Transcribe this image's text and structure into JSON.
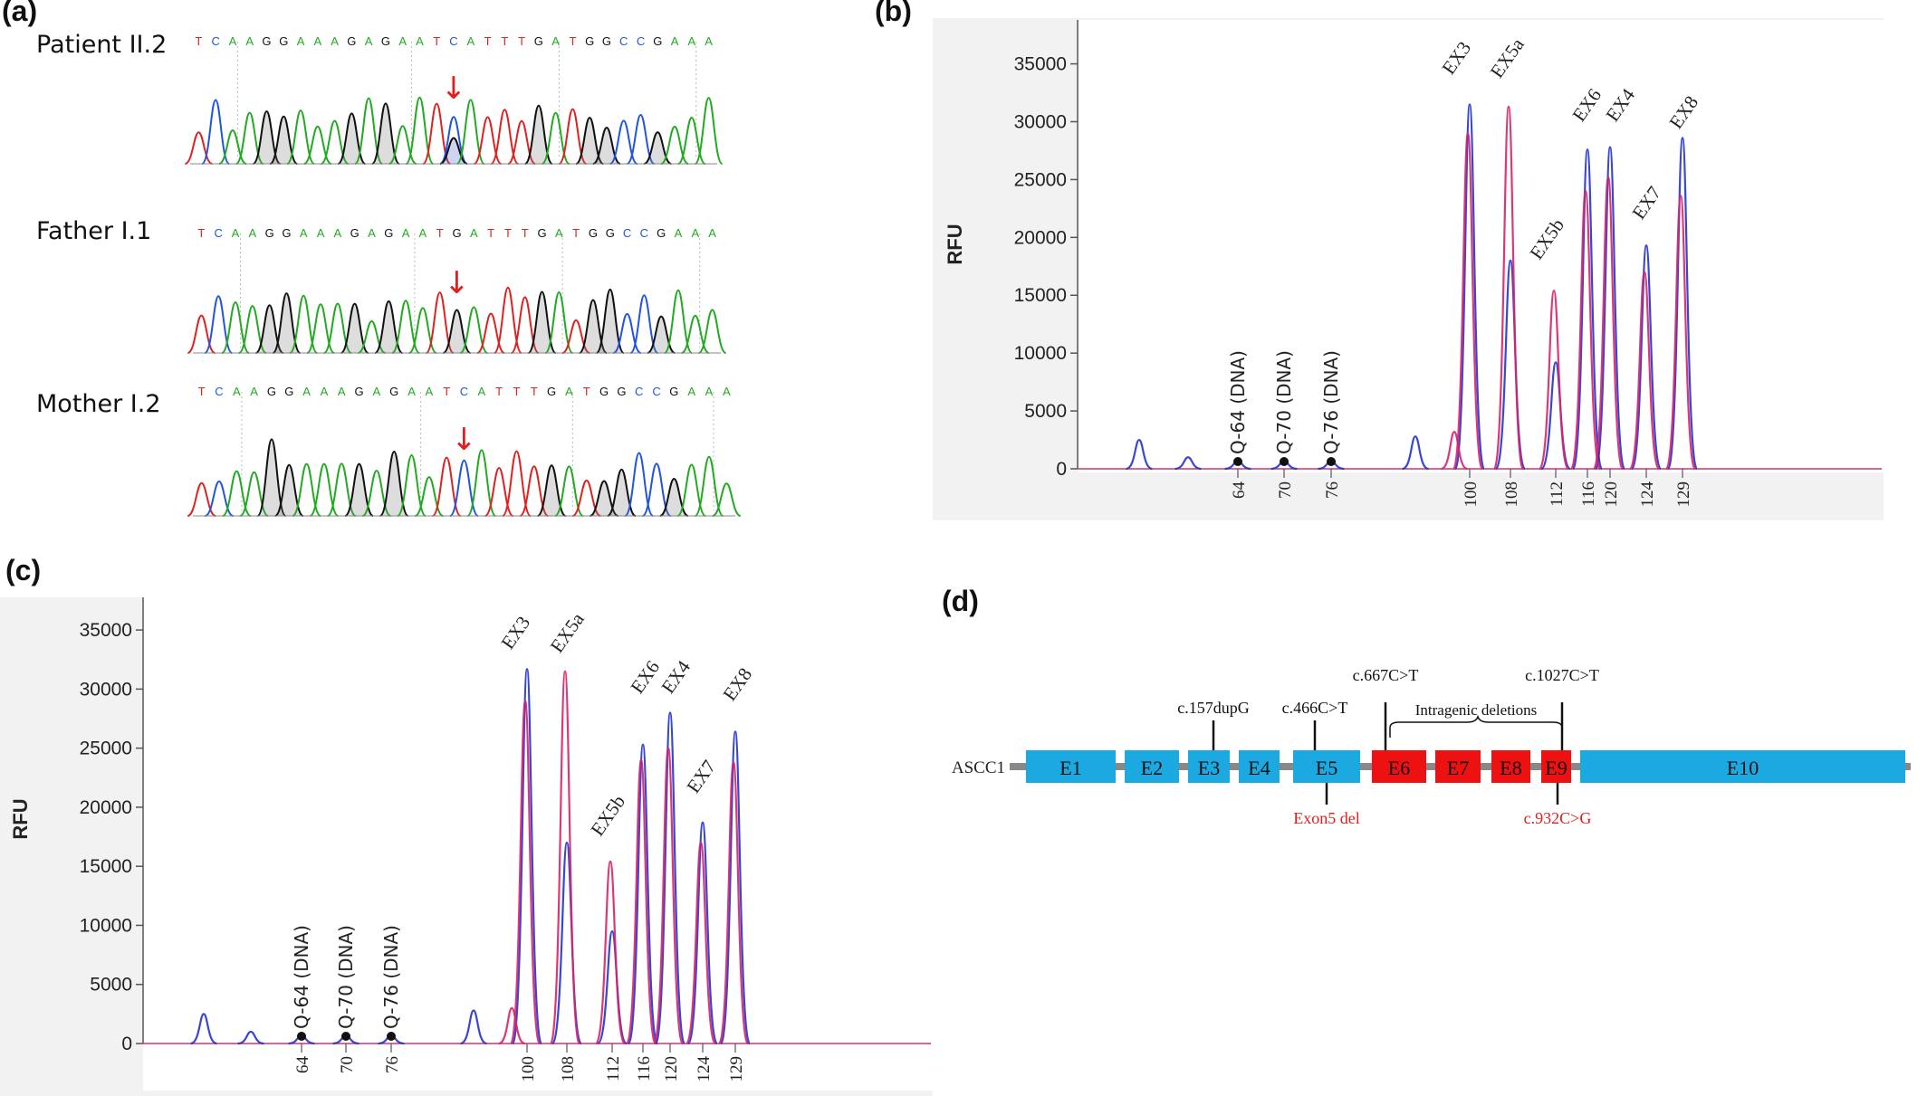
{
  "labels": {
    "a": "(a)",
    "b": "(b)",
    "c": "(c)",
    "d": "(d)"
  },
  "panel_a": {
    "tracks": [
      {
        "person": "Patient II.2",
        "sequence": "TCAAGGAAAGAGAATCATTTGATGGCCGAAA",
        "arrow": "↓"
      },
      {
        "person": "Father I.1",
        "sequence": "TCAAGGAAAGAGAATGATTTGATGGCCGAAA",
        "arrow": "↓"
      },
      {
        "person": "Mother I.2",
        "sequence": "TCAAGGAAAGAGAATCATTTGATGGCCGAAA",
        "arrow": "↓"
      }
    ],
    "base_colors": {
      "A": "#22aa22",
      "C": "#2255dd",
      "G": "#111111",
      "T": "#dd2222"
    },
    "arrow_color": "#e02020"
  },
  "panel_b": {
    "chart_data": {
      "type": "line",
      "ylabel": "RFU",
      "yticks": [
        "0",
        "5000",
        "10000",
        "15000",
        "20000",
        "25000",
        "30000",
        "35000"
      ],
      "ylim": [
        0,
        37000
      ],
      "xtick_labels": [
        "64",
        "70",
        "76",
        "100",
        "108",
        "112",
        "116",
        "120",
        "124",
        "129"
      ],
      "control_labels": [
        "Q-64 (DNA)",
        "Q-70 (DNA)",
        "Q-76 (DNA)"
      ],
      "exon_labels": [
        "EX3",
        "EX5a",
        "EX5b",
        "EX6",
        "EX4",
        "EX7",
        "EX8"
      ],
      "series": [
        {
          "color": "#2233cc",
          "peaks": [
            {
              "size": 40,
              "height": 2500
            },
            {
              "size": 50,
              "height": 1000
            },
            {
              "size": 64,
              "height": 700
            },
            {
              "size": 70,
              "height": 700
            },
            {
              "size": 76,
              "height": 700
            },
            {
              "size": 92,
              "height": 2800
            },
            {
              "size": 100,
              "height": 31500
            },
            {
              "size": 108,
              "height": 18000
            },
            {
              "size": 112,
              "height": 9200
            },
            {
              "size": 116,
              "height": 27600
            },
            {
              "size": 120,
              "height": 27800
            },
            {
              "size": 124,
              "height": 19300
            },
            {
              "size": 129,
              "height": 28600
            }
          ]
        },
        {
          "color": "#d8226a",
          "peaks": [
            {
              "size": 98,
              "height": 3200
            },
            {
              "size": 100,
              "height": 29000
            },
            {
              "size": 108,
              "height": 31300
            },
            {
              "size": 112,
              "height": 15400
            },
            {
              "size": 116,
              "height": 24000
            },
            {
              "size": 120,
              "height": 25200
            },
            {
              "size": 124,
              "height": 17000
            },
            {
              "size": 129,
              "height": 23600
            }
          ]
        }
      ]
    }
  },
  "panel_c": {
    "chart_data": {
      "type": "line",
      "ylabel": "RFU",
      "yticks": [
        "0",
        "5000",
        "10000",
        "15000",
        "20000",
        "25000",
        "30000",
        "35000"
      ],
      "ylim": [
        0,
        37000
      ],
      "xtick_labels": [
        "64",
        "70",
        "76",
        "100",
        "108",
        "112",
        "116",
        "120",
        "124",
        "129"
      ],
      "control_labels": [
        "Q-64 (DNA)",
        "Q-70 (DNA)",
        "Q-76 (DNA)"
      ],
      "exon_labels": [
        "EX3",
        "EX5a",
        "EX5b",
        "EX6",
        "EX4",
        "EX7",
        "EX8"
      ],
      "series": [
        {
          "color": "#2233cc",
          "peaks": [
            {
              "size": 40,
              "height": 2500
            },
            {
              "size": 50,
              "height": 1000
            },
            {
              "size": 64,
              "height": 700
            },
            {
              "size": 70,
              "height": 700
            },
            {
              "size": 76,
              "height": 700
            },
            {
              "size": 92,
              "height": 2800
            },
            {
              "size": 100,
              "height": 31700
            },
            {
              "size": 108,
              "height": 17000
            },
            {
              "size": 112,
              "height": 9500
            },
            {
              "size": 116,
              "height": 25300
            },
            {
              "size": 120,
              "height": 28000
            },
            {
              "size": 124,
              "height": 18700
            },
            {
              "size": 129,
              "height": 26400
            }
          ]
        },
        {
          "color": "#d8226a",
          "peaks": [
            {
              "size": 98,
              "height": 3000
            },
            {
              "size": 100,
              "height": 29000
            },
            {
              "size": 108,
              "height": 31500
            },
            {
              "size": 112,
              "height": 15400
            },
            {
              "size": 116,
              "height": 24000
            },
            {
              "size": 120,
              "height": 25000
            },
            {
              "size": 124,
              "height": 17000
            },
            {
              "size": 129,
              "height": 23800
            }
          ]
        }
      ]
    }
  },
  "panel_d": {
    "gene": "ASCC1",
    "exons": [
      {
        "label": "E1",
        "color": "#1ca8e0"
      },
      {
        "label": "E2",
        "color": "#1ca8e0"
      },
      {
        "label": "E3",
        "color": "#1ca8e0"
      },
      {
        "label": "E4",
        "color": "#1ca8e0"
      },
      {
        "label": "E5",
        "color": "#1ca8e0"
      },
      {
        "label": "E6",
        "color": "#ee1111"
      },
      {
        "label": "E7",
        "color": "#ee1111"
      },
      {
        "label": "E8",
        "color": "#ee1111"
      },
      {
        "label": "E9",
        "color": "#ee1111"
      },
      {
        "label": "E10",
        "color": "#1ca8e0"
      }
    ],
    "variants_above": [
      "c.157dupG",
      "c.466C>T",
      "c.667C>T",
      "c.1027C>T"
    ],
    "bracket_label": "Intragenic deletions",
    "variants_below": [
      "Exon5 del",
      "c.932C>G"
    ],
    "below_color": "#e02020"
  }
}
